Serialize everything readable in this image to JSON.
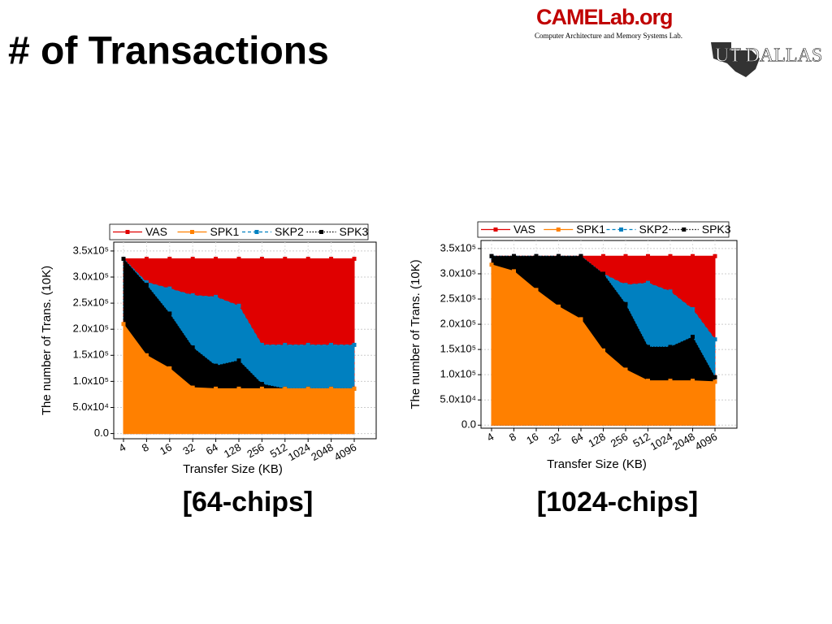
{
  "title": "# of Transactions",
  "logo": {
    "name": "CAMELab.org",
    "subtitle": "Computer Architecture and Memory Systems Lab.",
    "school": "UT DALLAS"
  },
  "captions": [
    "[64-chips]",
    "[1024-chips]"
  ],
  "chart_data": [
    {
      "type": "area",
      "xlabel": "Transfer Size (KB)",
      "ylabel": "The number of Trans. (10K)",
      "categories": [
        "4",
        "8",
        "16",
        "32",
        "64",
        "128",
        "256",
        "512",
        "1024",
        "2048",
        "4096"
      ],
      "ylim": [
        -10000,
        367000
      ],
      "yticks": [
        {
          "value": 0,
          "label": "0.0"
        },
        {
          "value": 50000,
          "label": "5.0x10⁴"
        },
        {
          "value": 100000,
          "label": "1.0x10⁵"
        },
        {
          "value": 150000,
          "label": "1.5x10⁵"
        },
        {
          "value": 200000,
          "label": "2.0x10⁵"
        },
        {
          "value": 250000,
          "label": "2.5x10⁵"
        },
        {
          "value": 300000,
          "label": "3.0x10⁵"
        },
        {
          "value": 350000,
          "label": "3.5x10⁵"
        }
      ],
      "grid": true,
      "series": [
        {
          "name": "VAS",
          "color": "#e00000",
          "line_style": "solid",
          "values": [
            335000,
            335000,
            335000,
            335000,
            335000,
            335000,
            335000,
            335000,
            335000,
            335000,
            335000
          ]
        },
        {
          "name": "SPK1",
          "color": "#ff8000",
          "line_style": "solid",
          "values": [
            210000,
            150000,
            125000,
            88000,
            86000,
            86000,
            86000,
            86000,
            86000,
            86000,
            86000
          ]
        },
        {
          "name": "SKP2",
          "color": "#0080c0",
          "line_style": "dashed",
          "values": [
            335000,
            290000,
            278000,
            265000,
            262000,
            245000,
            170000,
            170000,
            170000,
            170000,
            170000
          ]
        },
        {
          "name": "SPK3",
          "color": "#000000",
          "line_style": "dotted",
          "values": [
            335000,
            285000,
            230000,
            165000,
            130000,
            140000,
            95000,
            86000,
            86000,
            86000,
            86000
          ]
        }
      ]
    },
    {
      "type": "area",
      "xlabel": "Transfer Size (KB)",
      "ylabel": "The number of Trans. (10K)",
      "categories": [
        "4",
        "8",
        "16",
        "32",
        "64",
        "128",
        "256",
        "512",
        "1024",
        "2048",
        "4096"
      ],
      "ylim": [
        -6000,
        366000
      ],
      "yticks": [
        {
          "value": 0,
          "label": "0.0"
        },
        {
          "value": 50000,
          "label": "5.0x10⁴"
        },
        {
          "value": 100000,
          "label": "1.0x10⁵"
        },
        {
          "value": 150000,
          "label": "1.5x10⁵"
        },
        {
          "value": 200000,
          "label": "2.0x10⁵"
        },
        {
          "value": 250000,
          "label": "2.5x10⁵"
        },
        {
          "value": 300000,
          "label": "3.0x10⁵"
        },
        {
          "value": 350000,
          "label": "3.5x10⁵"
        }
      ],
      "grid": true,
      "series": [
        {
          "name": "VAS",
          "color": "#e00000",
          "line_style": "solid",
          "values": [
            335000,
            335000,
            335000,
            335000,
            335000,
            335000,
            335000,
            335000,
            335000,
            335000,
            335000
          ]
        },
        {
          "name": "SPK1",
          "color": "#ff8000",
          "line_style": "solid",
          "values": [
            318000,
            305000,
            268000,
            235000,
            210000,
            148000,
            110000,
            88000,
            88000,
            88000,
            86000
          ]
        },
        {
          "name": "SKP2",
          "color": "#0080c0",
          "line_style": "dashed",
          "values": [
            335000,
            335000,
            335000,
            335000,
            335000,
            300000,
            278000,
            282000,
            265000,
            230000,
            170000
          ]
        },
        {
          "name": "SPK3",
          "color": "#000000",
          "line_style": "dotted",
          "values": [
            335000,
            335000,
            335000,
            335000,
            335000,
            300000,
            240000,
            155000,
            155000,
            175000,
            95000
          ]
        }
      ]
    }
  ]
}
